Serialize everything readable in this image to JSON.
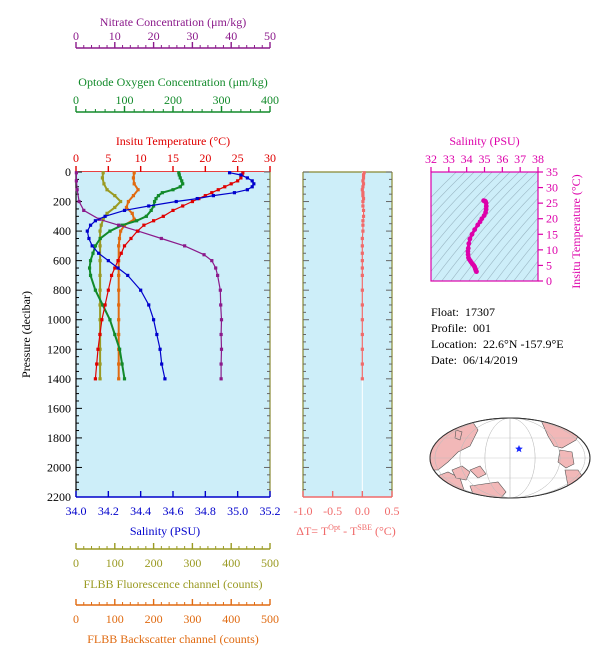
{
  "info": {
    "float_label": "Float:",
    "float": "17307",
    "profile_label": "Profile:",
    "profile": "001",
    "location_label": "Location:",
    "location": "22.6°N  -157.9°E",
    "date_label": "Date:",
    "date": "06/14/2019"
  },
  "colors": {
    "nitrate": "#8b1a8b",
    "oxygen": "#128a2a",
    "temperature": "#e00000",
    "salinity": "#0000cc",
    "fluorescence": "#9a9a22",
    "backscatter": "#e06a10",
    "delta_t": "#f06a6a",
    "ts": "#dd00aa",
    "plot_bg": "#cdeef9",
    "land": "#f2b8b8",
    "ocean": "#ffffff"
  },
  "chart_data": [
    {
      "type": "line",
      "panel": "profile",
      "ylabel": "Pressure (decibar)",
      "yticks": [
        0,
        200,
        400,
        600,
        800,
        1000,
        1200,
        1400,
        1600,
        1800,
        2000,
        2200
      ],
      "ylim": [
        0,
        2200
      ],
      "grid": false,
      "axes": {
        "nitrate": {
          "label": "Nitrate Concentration (μm/kg)",
          "ticks": [
            "0",
            "10",
            "20",
            "30",
            "40",
            "50"
          ],
          "lim": [
            0,
            50
          ]
        },
        "oxygen": {
          "label": "Optode Oxygen Concentration (μm/kg)",
          "ticks": [
            "0",
            "100",
            "200",
            "300",
            "400"
          ],
          "lim": [
            0,
            400
          ]
        },
        "temperature": {
          "label": "Insitu Temperature (°C)",
          "ticks": [
            "0",
            "5",
            "10",
            "15",
            "20",
            "25",
            "30"
          ],
          "lim": [
            0,
            30
          ]
        },
        "salinity": {
          "label": "Salinity (PSU)",
          "ticks": [
            "34.0",
            "34.2",
            "34.4",
            "34.6",
            "34.8",
            "35.0",
            "35.2"
          ],
          "lim": [
            34.0,
            35.2
          ]
        },
        "fluorescence": {
          "label": "FLBB Fluorescence channel (counts)",
          "ticks": [
            "0",
            "100",
            "200",
            "300",
            "400",
            "500"
          ],
          "lim": [
            0,
            500
          ]
        },
        "backscatter": {
          "label": "FLBB Backscatter channel (counts)",
          "ticks": [
            "0",
            "100",
            "200",
            "300",
            "400",
            "500"
          ],
          "lim": [
            0,
            500
          ]
        }
      },
      "series": [
        {
          "name": "Nitrate",
          "axis": "nitrate",
          "pressure": [
            5,
            60,
            120,
            200,
            260,
            320,
            360,
            400,
            450,
            500,
            560,
            600,
            650,
            700,
            800,
            900,
            1000,
            1100,
            1200,
            1300,
            1400
          ],
          "values": [
            0.1,
            0.1,
            0.3,
            0.8,
            2,
            6,
            11,
            16,
            22,
            28,
            33,
            35,
            36,
            36.5,
            37.2,
            37.3,
            37.5,
            37.4,
            37.5,
            37.4,
            37.4
          ]
        },
        {
          "name": "Oxygen",
          "axis": "oxygen",
          "pressure": [
            5,
            20,
            40,
            60,
            80,
            100,
            120,
            140,
            160,
            180,
            200,
            230,
            260,
            300,
            330,
            360,
            400,
            450,
            500,
            550,
            600,
            650,
            700,
            800,
            900,
            1000,
            1100,
            1200,
            1300,
            1400
          ],
          "values": [
            212,
            213,
            215,
            218,
            220,
            215,
            200,
            178,
            170,
            165,
            162,
            160,
            155,
            145,
            125,
            95,
            70,
            50,
            40,
            35,
            30,
            28,
            30,
            40,
            55,
            70,
            80,
            90,
            95,
            100
          ]
        },
        {
          "name": "Temperature",
          "axis": "temperature",
          "pressure": [
            5,
            20,
            40,
            60,
            80,
            100,
            120,
            140,
            160,
            180,
            200,
            230,
            260,
            300,
            330,
            360,
            400,
            450,
            500,
            550,
            600,
            650,
            700,
            800,
            900,
            1000,
            1100,
            1200,
            1300,
            1400
          ],
          "values": [
            25.8,
            25.7,
            25.5,
            25.0,
            24.0,
            23.0,
            22.0,
            21.0,
            20.0,
            19.0,
            18.0,
            16.5,
            15.0,
            13.5,
            12.0,
            10.5,
            9.5,
            8.5,
            7.5,
            7.0,
            6.5,
            6.0,
            5.5,
            5.0,
            4.5,
            4.0,
            3.7,
            3.4,
            3.2,
            3.0
          ]
        },
        {
          "name": "Salinity",
          "axis": "salinity",
          "pressure": [
            5,
            20,
            40,
            60,
            80,
            100,
            120,
            140,
            160,
            180,
            200,
            230,
            260,
            300,
            330,
            360,
            400,
            450,
            500,
            550,
            600,
            650,
            700,
            800,
            900,
            1000,
            1100,
            1200,
            1300,
            1400
          ],
          "values": [
            34.95,
            35.02,
            35.06,
            35.09,
            35.1,
            35.09,
            35.06,
            34.98,
            34.85,
            34.75,
            34.62,
            34.45,
            34.3,
            34.18,
            34.12,
            34.09,
            34.07,
            34.08,
            34.1,
            34.14,
            34.2,
            34.26,
            34.32,
            34.4,
            34.45,
            34.48,
            34.5,
            34.52,
            34.53,
            34.55
          ]
        },
        {
          "name": "Fluorescence",
          "axis": "fluorescence",
          "pressure": [
            5,
            40,
            80,
            120,
            160,
            200,
            240,
            280,
            320,
            360,
            400,
            450,
            500,
            600,
            700,
            800,
            900,
            1000,
            1100,
            1200,
            1300,
            1400
          ],
          "values": [
            70,
            68,
            72,
            80,
            100,
            115,
            100,
            80,
            70,
            65,
            62,
            62,
            62,
            62,
            62,
            62,
            62,
            62,
            62,
            62,
            62,
            62
          ]
        },
        {
          "name": "Backscatter",
          "axis": "backscatter",
          "pressure": [
            5,
            40,
            80,
            120,
            160,
            200,
            240,
            280,
            320,
            360,
            400,
            450,
            500,
            600,
            700,
            800,
            900,
            1000,
            1100,
            1200,
            1300,
            1400
          ],
          "values": [
            150,
            148,
            150,
            160,
            148,
            135,
            130,
            145,
            150,
            125,
            115,
            112,
            110,
            110,
            110,
            110,
            110,
            110,
            110,
            110,
            110,
            110
          ]
        }
      ]
    },
    {
      "type": "line",
      "panel": "delta_t",
      "xlabel": "ΔT= TOpt - TSBE (°C)",
      "xlabel_main": "ΔT= T",
      "xlabel_sup1": "Opt",
      "xlabel_mid": " - T",
      "xlabel_sup2": "SBE",
      "xlabel_end": " (°C)",
      "xticks": [
        "-1.0",
        "-0.5",
        "0.0",
        "0.5"
      ],
      "xlim": [
        -1.0,
        0.5
      ],
      "ylim": [
        0,
        2200
      ],
      "pressure": [
        5,
        20,
        40,
        60,
        80,
        100,
        120,
        140,
        160,
        180,
        200,
        230,
        260,
        300,
        330,
        360,
        400,
        450,
        500,
        550,
        600,
        650,
        700,
        800,
        900,
        1000,
        1100,
        1200,
        1300,
        1400
      ],
      "values": [
        0.03,
        0.02,
        0.02,
        0.01,
        0.02,
        0.01,
        0.0,
        0.01,
        0.01,
        0.02,
        0.01,
        0.01,
        0.02,
        0.02,
        0.01,
        0.01,
        0.01,
        0.0,
        0.0,
        0.0,
        0.0,
        0.0,
        0.0,
        0.0,
        0.0,
        0.0,
        0.0,
        0.0,
        0.0,
        0.0
      ]
    },
    {
      "type": "scatter",
      "panel": "ts",
      "title": "Salinity (PSU)",
      "ylabel": "Insitu Temperature (°C)",
      "xticks": [
        "32",
        "33",
        "34",
        "35",
        "36",
        "37",
        "38"
      ],
      "xlim": [
        32,
        38
      ],
      "yticks": [
        "0",
        "5",
        "10",
        "15",
        "20",
        "25",
        "30",
        "35"
      ],
      "ylim": [
        0,
        35
      ],
      "points": [
        [
          34.55,
          3.0
        ],
        [
          34.53,
          3.2
        ],
        [
          34.52,
          3.4
        ],
        [
          34.5,
          3.7
        ],
        [
          34.48,
          4.0
        ],
        [
          34.45,
          4.5
        ],
        [
          34.4,
          5.0
        ],
        [
          34.32,
          5.5
        ],
        [
          34.26,
          6.0
        ],
        [
          34.2,
          6.5
        ],
        [
          34.14,
          7.0
        ],
        [
          34.1,
          7.5
        ],
        [
          34.08,
          8.5
        ],
        [
          34.07,
          9.5
        ],
        [
          34.09,
          10.5
        ],
        [
          34.12,
          12.0
        ],
        [
          34.18,
          13.5
        ],
        [
          34.3,
          15.0
        ],
        [
          34.45,
          16.5
        ],
        [
          34.62,
          18.0
        ],
        [
          34.75,
          19.0
        ],
        [
          34.85,
          20.0
        ],
        [
          34.98,
          21.0
        ],
        [
          35.06,
          22.0
        ],
        [
          35.09,
          23.0
        ],
        [
          35.1,
          24.0
        ],
        [
          35.09,
          25.0
        ],
        [
          35.06,
          25.5
        ],
        [
          35.02,
          25.7
        ],
        [
          34.95,
          25.8
        ]
      ]
    }
  ]
}
